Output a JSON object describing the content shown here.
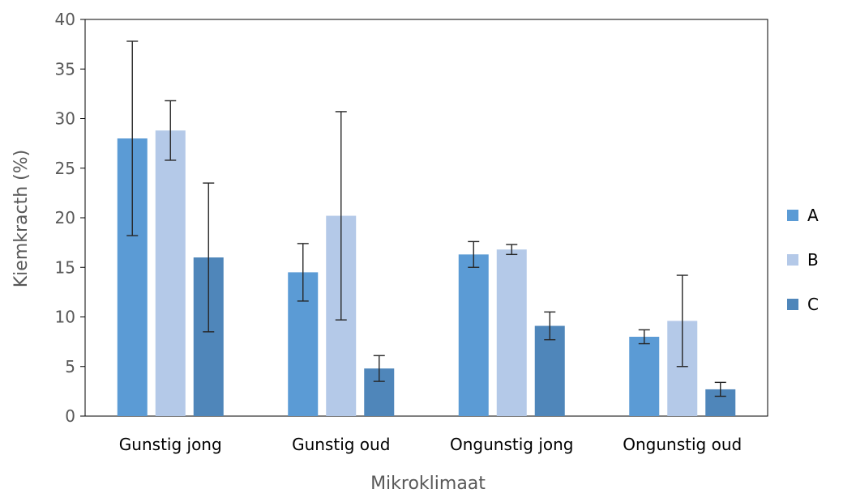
{
  "chart_data": {
    "type": "bar",
    "title": "",
    "xlabel": "Mikroklimaat",
    "ylabel": "Kiemkracth (%)",
    "ylim": [
      0,
      40
    ],
    "yticks": [
      0,
      5,
      10,
      15,
      20,
      25,
      30,
      35,
      40
    ],
    "grid": false,
    "legend_position": "right",
    "categories": [
      "Gunstig jong",
      "Gunstig oud",
      "Ongunstig jong",
      "Ongunstig oud"
    ],
    "series": [
      {
        "name": "A",
        "color": "#5B9BD5",
        "values": [
          28.0,
          14.5,
          16.3,
          8.0
        ],
        "error": [
          9.8,
          2.9,
          1.3,
          0.7
        ]
      },
      {
        "name": "B",
        "color": "#B4C9E8",
        "values": [
          28.8,
          20.2,
          16.8,
          9.6
        ],
        "error": [
          3.0,
          10.5,
          0.5,
          4.6
        ]
      },
      {
        "name": "C",
        "color": "#4F86BA",
        "values": [
          16.0,
          4.8,
          9.1,
          2.7
        ],
        "error": [
          7.5,
          1.3,
          1.4,
          0.7
        ]
      }
    ]
  }
}
